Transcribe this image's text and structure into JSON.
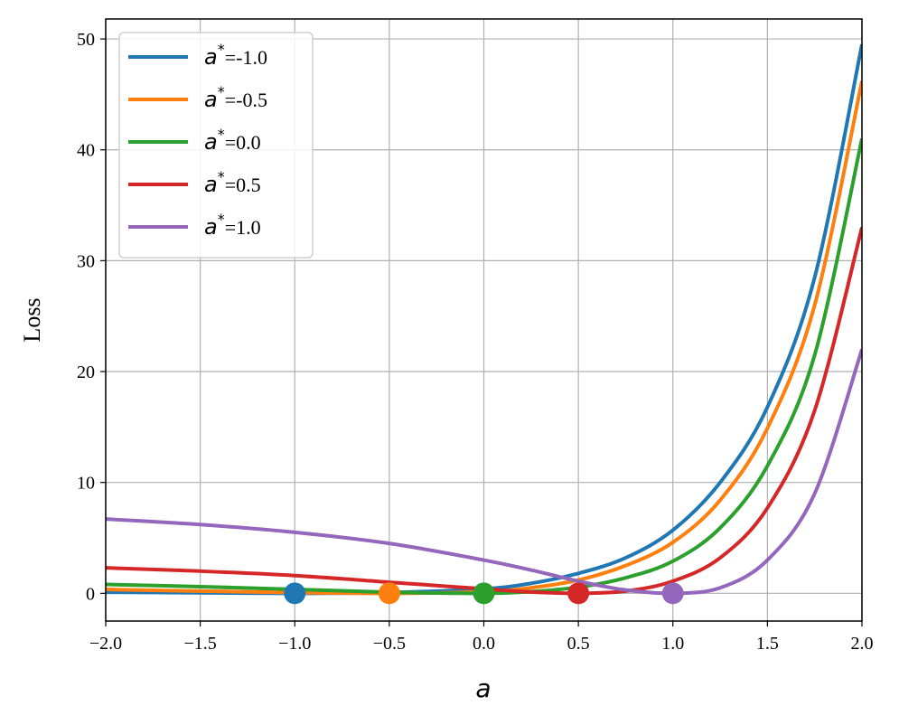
{
  "chart_data": {
    "type": "line",
    "xlabel": "a",
    "ylabel": "Loss",
    "xlim": [
      -2.0,
      2.0
    ],
    "ylim": [
      -2.5,
      51.8
    ],
    "xticks": [
      -2.0,
      -1.5,
      -1.0,
      -0.5,
      0.0,
      0.5,
      1.0,
      1.5,
      2.0
    ],
    "xtick_labels": [
      "−2.0",
      "−1.5",
      "−1.0",
      "−0.5",
      "0.0",
      "0.5",
      "1.0",
      "1.5",
      "2.0"
    ],
    "yticks": [
      0,
      10,
      20,
      30,
      40,
      50
    ],
    "ytick_labels": [
      "0",
      "10",
      "20",
      "30",
      "40",
      "50"
    ],
    "grid": true,
    "legend_position": "top-left",
    "series": [
      {
        "name": "a*=-1.0",
        "legend_var": "a",
        "legend_star": "*",
        "legend_value": "=-1.0",
        "color": "#1f77b4",
        "x": [
          -2.0,
          -1.5,
          -1.0,
          -0.5,
          0.0,
          0.25,
          0.5,
          0.75,
          1.0,
          1.25,
          1.5,
          1.75,
          2.0
        ],
        "y": [
          0.1,
          0.05,
          0.0,
          0.08,
          0.4,
          0.9,
          1.8,
          3.2,
          5.7,
          10.0,
          16.8,
          28.5,
          49.5
        ],
        "marker": [
          -1.0,
          0.0
        ]
      },
      {
        "name": "a*=-0.5",
        "legend_var": "a",
        "legend_star": "*",
        "legend_value": "=-0.5",
        "color": "#ff7f0e",
        "x": [
          -2.0,
          -1.5,
          -1.0,
          -0.5,
          0.0,
          0.25,
          0.5,
          0.75,
          1.0,
          1.25,
          1.5,
          1.75,
          2.0
        ],
        "y": [
          0.35,
          0.2,
          0.07,
          0.0,
          0.15,
          0.5,
          1.2,
          2.5,
          4.6,
          8.4,
          14.9,
          26.0,
          46.2
        ],
        "marker": [
          -0.5,
          0.0
        ]
      },
      {
        "name": "a*=0.0",
        "legend_var": "a",
        "legend_star": "*",
        "legend_value": "=0.0",
        "color": "#2ca02c",
        "x": [
          -2.0,
          -1.5,
          -1.0,
          -0.5,
          0.0,
          0.25,
          0.5,
          0.75,
          1.0,
          1.25,
          1.5,
          1.75,
          2.0
        ],
        "y": [
          0.8,
          0.6,
          0.35,
          0.1,
          0.0,
          0.15,
          0.55,
          1.4,
          2.9,
          5.9,
          11.5,
          21.5,
          41.0
        ],
        "marker": [
          0.0,
          0.0
        ]
      },
      {
        "name": "a*=0.5",
        "legend_var": "a",
        "legend_star": "*",
        "legend_value": "=0.5",
        "color": "#d62728",
        "x": [
          -2.0,
          -1.5,
          -1.0,
          -0.5,
          0.0,
          0.25,
          0.5,
          0.75,
          1.0,
          1.25,
          1.5,
          1.75,
          2.0
        ],
        "y": [
          2.3,
          2.0,
          1.6,
          1.0,
          0.4,
          0.12,
          0.0,
          0.2,
          1.1,
          3.2,
          7.7,
          16.5,
          33.0
        ],
        "marker": [
          0.5,
          0.0
        ]
      },
      {
        "name": "a*=1.0",
        "legend_var": "a",
        "legend_star": "*",
        "legend_value": "=1.0",
        "color": "#9467bd",
        "x": [
          -2.0,
          -1.5,
          -1.0,
          -0.5,
          0.0,
          0.25,
          0.5,
          0.75,
          1.0,
          1.25,
          1.5,
          1.75,
          2.0
        ],
        "y": [
          6.7,
          6.2,
          5.5,
          4.5,
          3.0,
          2.1,
          1.1,
          0.3,
          0.0,
          0.5,
          3.0,
          9.0,
          22.0
        ],
        "marker": [
          1.0,
          0.0
        ]
      }
    ]
  }
}
